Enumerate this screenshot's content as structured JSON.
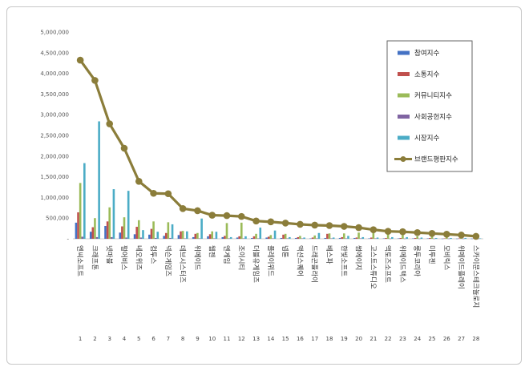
{
  "chart_data": {
    "type": "bar",
    "title": "",
    "xlabel": "",
    "ylabel": "",
    "ylim": [
      0,
      5000000
    ],
    "yticks": [
      "-",
      "500,000",
      "1,000,000",
      "1,500,000",
      "2,000,000",
      "2,500,000",
      "3,000,000",
      "3,500,000",
      "4,000,000",
      "4,500,000",
      "5,000,000"
    ],
    "legend_position": "top-right",
    "numbers": [
      "1",
      "2",
      "3",
      "4",
      "5",
      "6",
      "7",
      "8",
      "9",
      "10",
      "11",
      "12",
      "13",
      "14",
      "15",
      "16",
      "17",
      "18",
      "19",
      "20",
      "21",
      "22",
      "23",
      "24",
      "25",
      "26",
      "27",
      "28"
    ],
    "categories": [
      "엔씨소프트",
      "크래프톤",
      "넷마블",
      "펄어비스",
      "네오위즈",
      "컴투스",
      "넥슨게임즈",
      "데브시스터즈",
      "위메이드",
      "웹젠",
      "엔게임",
      "조이시티",
      "더블유게임즈",
      "플레이위드",
      "넵튠",
      "액션스퀘어",
      "드래곤플라이",
      "베스파",
      "한빛소프트",
      "썸에이지",
      "고스트스튜디오",
      "액토즈소프트",
      "위메이드맥스",
      "룽투코리아",
      "미투젠",
      "모비릭스",
      "위메이드플레이",
      "스카이문스테크놀로지"
    ],
    "series": [
      {
        "name": "참여지수",
        "color": "#4472c4",
        "values": [
          390000,
          170000,
          310000,
          150000,
          110000,
          100000,
          70000,
          90000,
          40000,
          60000,
          40000,
          30000,
          20000,
          30000,
          20000,
          20000,
          10000,
          20000,
          20000,
          20000,
          10000,
          10000,
          10000,
          10000,
          10000,
          5000,
          5000,
          5000
        ]
      },
      {
        "name": "소통지수",
        "color": "#c0504d",
        "values": [
          640000,
          280000,
          420000,
          300000,
          290000,
          240000,
          140000,
          180000,
          120000,
          110000,
          70000,
          60000,
          60000,
          50000,
          100000,
          40000,
          30000,
          120000,
          40000,
          30000,
          30000,
          20000,
          20000,
          20000,
          20000,
          10000,
          10000,
          10000
        ]
      },
      {
        "name": "커뮤니티지수",
        "color": "#9bbb59",
        "values": [
          1350000,
          500000,
          760000,
          520000,
          450000,
          420000,
          400000,
          190000,
          140000,
          180000,
          380000,
          390000,
          120000,
          90000,
          120000,
          70000,
          80000,
          130000,
          130000,
          150000,
          140000,
          120000,
          90000,
          60000,
          80000,
          70000,
          40000,
          30000
        ]
      },
      {
        "name": "사회공헌지수",
        "color": "#8064a2",
        "values": [
          50000,
          40000,
          40000,
          30000,
          30000,
          20000,
          20000,
          10000,
          10000,
          10000,
          10000,
          10000,
          10000,
          10000,
          10000,
          10000,
          10000,
          10000,
          10000,
          10000,
          10000,
          5000,
          5000,
          5000,
          5000,
          5000,
          5000,
          5000
        ]
      },
      {
        "name": "시장지수",
        "color": "#4bacc6",
        "values": [
          1830000,
          2840000,
          1200000,
          1160000,
          210000,
          170000,
          350000,
          180000,
          490000,
          170000,
          40000,
          60000,
          270000,
          200000,
          40000,
          30000,
          140000,
          30000,
          70000,
          40000,
          30000,
          40000,
          40000,
          30000,
          20000,
          20000,
          20000,
          10000
        ]
      }
    ],
    "line_series": {
      "name": "브랜드평판지수",
      "color": "#8b7d3a",
      "values": [
        4320000,
        3830000,
        2780000,
        2190000,
        1390000,
        1100000,
        1090000,
        730000,
        680000,
        570000,
        560000,
        540000,
        430000,
        410000,
        380000,
        350000,
        330000,
        320000,
        300000,
        270000,
        220000,
        180000,
        170000,
        150000,
        130000,
        110000,
        90000,
        60000
      ]
    }
  }
}
